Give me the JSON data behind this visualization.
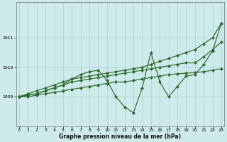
{
  "title": "Graphe pression niveau de la mer (hPa)",
  "background_color": "#ceeaea",
  "grid_color": "#aacfcf",
  "line_color": "#2d6a2d",
  "yticks": [
    1009,
    1010,
    1011
  ],
  "ylim": [
    1008.0,
    1012.2
  ],
  "xlim": [
    -0.3,
    23.3
  ],
  "xticks": [
    0,
    1,
    2,
    3,
    4,
    5,
    6,
    7,
    8,
    9,
    10,
    11,
    12,
    13,
    14,
    15,
    16,
    17,
    18,
    19,
    20,
    21,
    22,
    23
  ],
  "series": {
    "straight": [
      1009.0,
      1009.1,
      1009.2,
      1009.3,
      1009.4,
      1009.5,
      1009.6,
      1009.65,
      1009.7,
      1009.75,
      1009.8,
      1009.85,
      1009.9,
      1009.95,
      1010.0,
      1010.1,
      1010.2,
      1010.3,
      1010.4,
      1010.5,
      1010.6,
      1010.8,
      1011.0,
      1011.5
    ],
    "upper": [
      1009.0,
      1009.05,
      1009.1,
      1009.2,
      1009.3,
      1009.4,
      1009.5,
      1009.55,
      1009.6,
      1009.65,
      1009.7,
      1009.75,
      1009.8,
      1009.85,
      1009.9,
      1009.95,
      1010.0,
      1010.05,
      1010.1,
      1010.15,
      1010.15,
      1010.35,
      1010.6,
      1010.85
    ],
    "lower": [
      1009.0,
      1009.0,
      1009.05,
      1009.1,
      1009.15,
      1009.2,
      1009.25,
      1009.3,
      1009.35,
      1009.4,
      1009.45,
      1009.5,
      1009.5,
      1009.55,
      1009.6,
      1009.65,
      1009.7,
      1009.75,
      1009.78,
      1009.8,
      1009.82,
      1009.85,
      1009.9,
      1009.95
    ],
    "jagged": [
      1009.0,
      1009.05,
      1009.1,
      1009.2,
      1009.3,
      1009.4,
      1009.6,
      1009.75,
      1009.85,
      1009.9,
      1009.55,
      1009.0,
      1008.65,
      1008.45,
      1009.3,
      1010.5,
      1009.5,
      1009.0,
      1009.35,
      1009.7,
      1009.75,
      1010.1,
      1010.55,
      1011.5
    ]
  }
}
